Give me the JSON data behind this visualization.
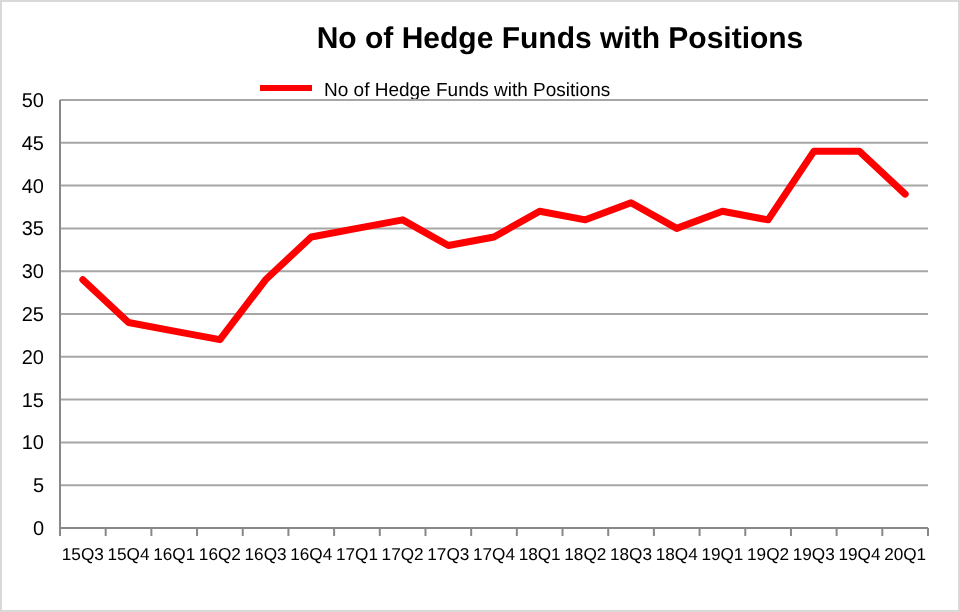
{
  "chart_data": {
    "type": "line",
    "title": "No of Hedge Funds with Positions",
    "categories": [
      "15Q3",
      "15Q4",
      "16Q1",
      "16Q2",
      "16Q3",
      "16Q4",
      "17Q1",
      "17Q2",
      "17Q3",
      "17Q4",
      "18Q1",
      "18Q2",
      "18Q3",
      "18Q4",
      "19Q1",
      "19Q2",
      "19Q3",
      "19Q4",
      "20Q1"
    ],
    "series": [
      {
        "name": "No of Hedge Funds with Positions",
        "color": "#ff0000",
        "values": [
          29,
          24,
          23,
          22,
          29,
          34,
          35,
          36,
          33,
          34,
          37,
          36,
          38,
          35,
          37,
          36,
          44,
          44,
          39
        ]
      }
    ],
    "ylim": [
      0,
      50
    ],
    "yticks": [
      0,
      5,
      10,
      15,
      20,
      25,
      30,
      35,
      40,
      45,
      50
    ],
    "grid": "y",
    "legend": "top",
    "marker": "none",
    "line_style": "solid"
  }
}
